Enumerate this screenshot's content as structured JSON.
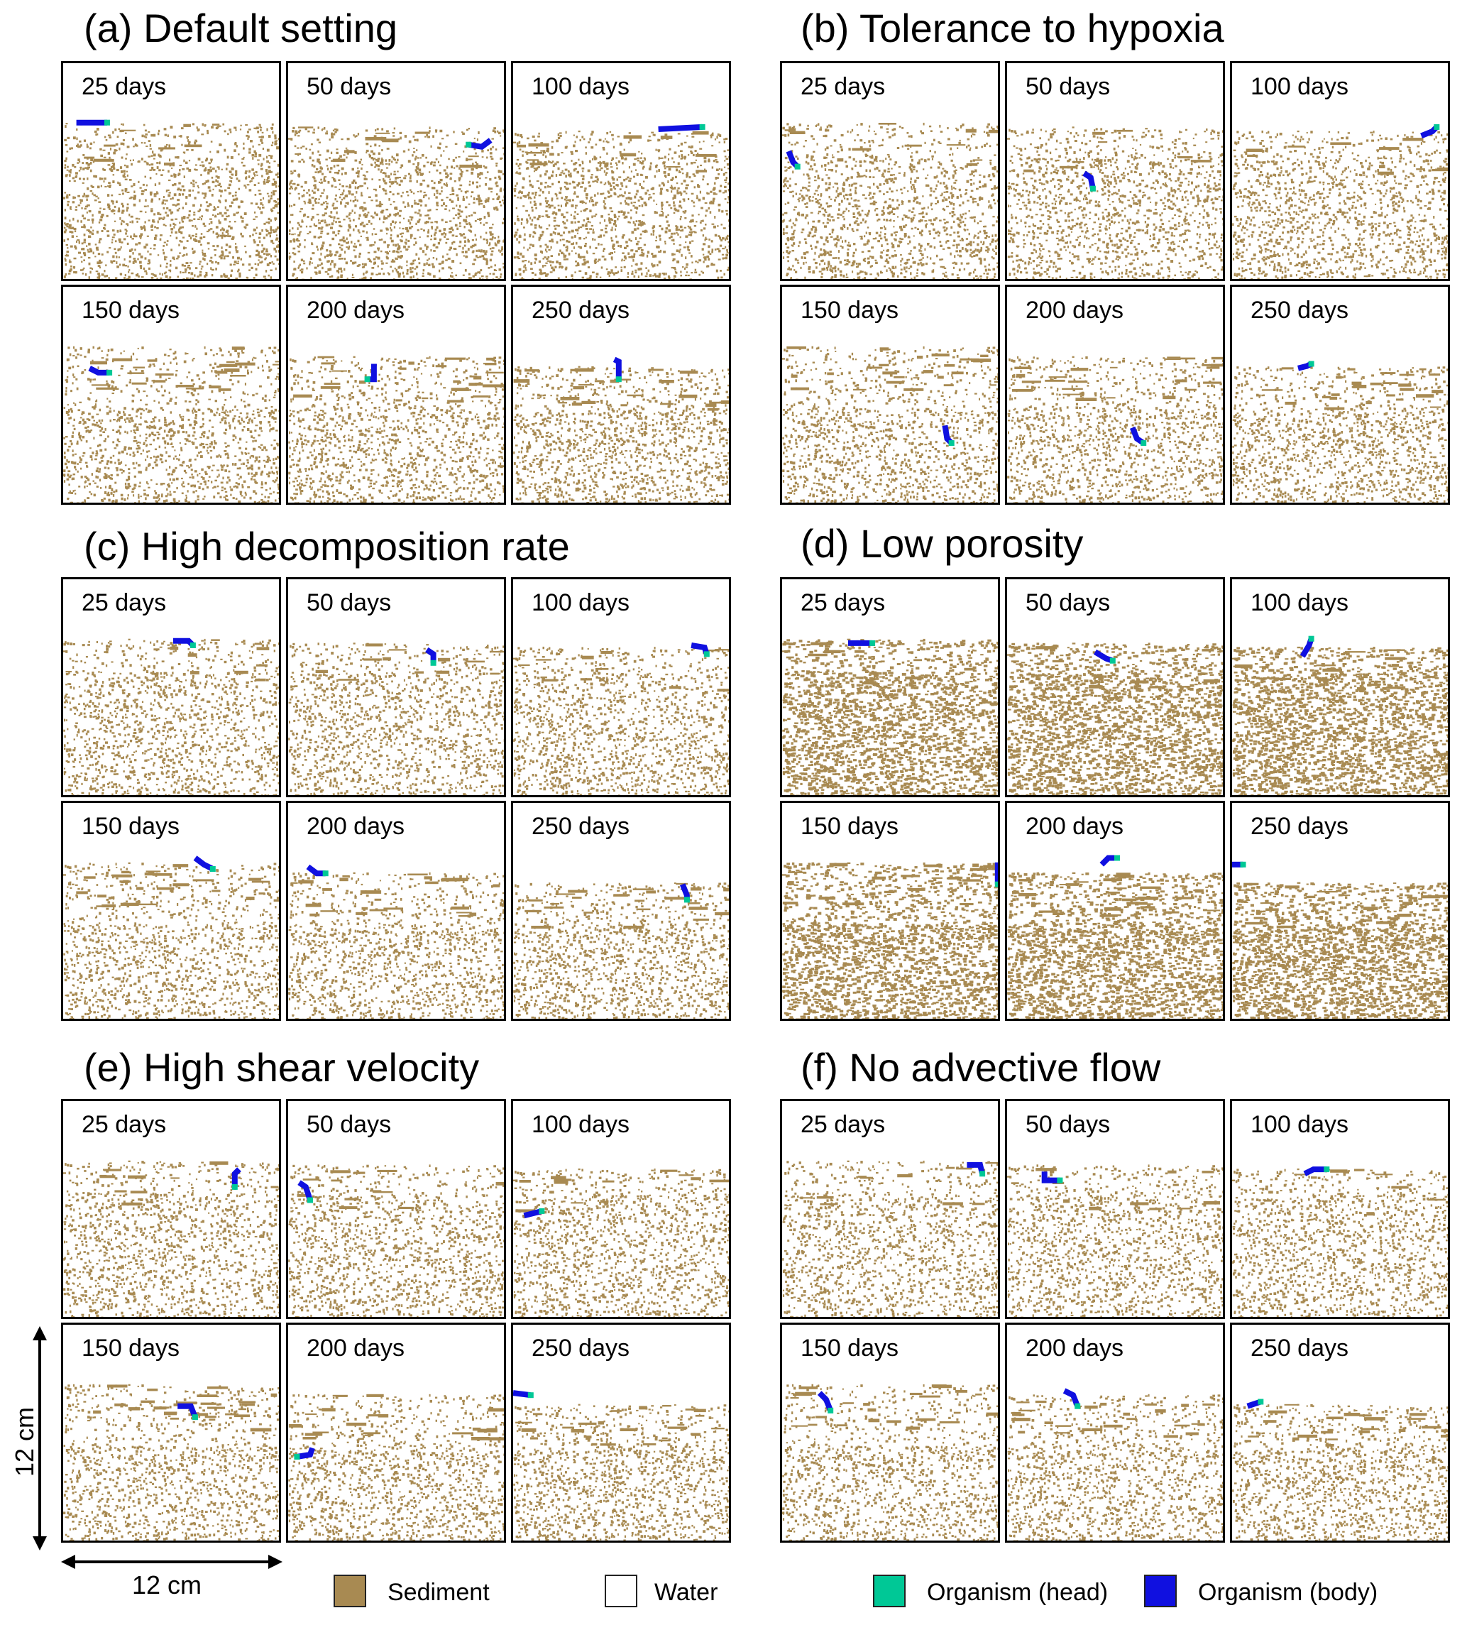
{
  "colors": {
    "sediment": "#a88a52",
    "water": "#ffffff",
    "organism_head": "#00c896",
    "organism_body": "#1010e0"
  },
  "groups": [
    {
      "id": "a",
      "title": "(a) Default setting",
      "density": "normal",
      "panels": [
        {
          "label": "25 days",
          "organism": {
            "points": [
              [
                0.06,
                0.27
              ],
              [
                0.2,
                0.27
              ]
            ]
          }
        },
        {
          "label": "50 days",
          "organism": {
            "points": [
              [
                0.92,
                0.35
              ],
              [
                0.88,
                0.38
              ],
              [
                0.82,
                0.37
              ]
            ]
          }
        },
        {
          "label": "100 days",
          "organism": {
            "points": [
              [
                0.66,
                0.3
              ],
              [
                0.86,
                0.29
              ]
            ]
          }
        },
        {
          "label": "150 days",
          "organism": {
            "points": [
              [
                0.12,
                0.37
              ],
              [
                0.16,
                0.39
              ],
              [
                0.21,
                0.39
              ]
            ]
          }
        },
        {
          "label": "200 days",
          "organism": {
            "points": [
              [
                0.39,
                0.35
              ],
              [
                0.39,
                0.42
              ],
              [
                0.36,
                0.42
              ]
            ]
          }
        },
        {
          "label": "250 days",
          "organism": {
            "points": [
              [
                0.46,
                0.33
              ],
              [
                0.48,
                0.34
              ],
              [
                0.48,
                0.42
              ]
            ]
          }
        }
      ]
    },
    {
      "id": "b",
      "title": "(b) Tolerance to hypoxia",
      "density": "normal",
      "panels": [
        {
          "label": "25 days",
          "organism": {
            "points": [
              [
                0.03,
                0.4
              ],
              [
                0.05,
                0.45
              ],
              [
                0.07,
                0.47
              ]
            ]
          }
        },
        {
          "label": "50 days",
          "organism": {
            "points": [
              [
                0.35,
                0.5
              ],
              [
                0.38,
                0.52
              ],
              [
                0.39,
                0.57
              ]
            ]
          }
        },
        {
          "label": "100 days",
          "organism": {
            "points": [
              [
                0.86,
                0.33
              ],
              [
                0.91,
                0.31
              ],
              [
                0.93,
                0.29
              ]
            ]
          }
        },
        {
          "label": "150 days",
          "organism": {
            "points": [
              [
                0.74,
                0.63
              ],
              [
                0.75,
                0.69
              ],
              [
                0.77,
                0.71
              ]
            ]
          }
        },
        {
          "label": "200 days",
          "organism": {
            "points": [
              [
                0.57,
                0.64
              ],
              [
                0.59,
                0.69
              ],
              [
                0.62,
                0.71
              ]
            ]
          }
        },
        {
          "label": "250 days",
          "organism": {
            "points": [
              [
                0.3,
                0.37
              ],
              [
                0.34,
                0.36
              ],
              [
                0.36,
                0.35
              ]
            ]
          }
        }
      ]
    },
    {
      "id": "c",
      "title": "(c) High decomposition rate",
      "density": "normal",
      "panels": [
        {
          "label": "25 days",
          "organism": {
            "points": [
              [
                0.5,
                0.28
              ],
              [
                0.57,
                0.28
              ],
              [
                0.59,
                0.3
              ]
            ]
          }
        },
        {
          "label": "50 days",
          "organism": {
            "points": [
              [
                0.63,
                0.32
              ],
              [
                0.66,
                0.34
              ],
              [
                0.66,
                0.38
              ]
            ]
          }
        },
        {
          "label": "100 days",
          "organism": {
            "points": [
              [
                0.81,
                0.3
              ],
              [
                0.87,
                0.31
              ],
              [
                0.88,
                0.34
              ]
            ]
          }
        },
        {
          "label": "150 days",
          "organism": {
            "points": [
              [
                0.6,
                0.25
              ],
              [
                0.64,
                0.28
              ],
              [
                0.68,
                0.3
              ]
            ]
          }
        },
        {
          "label": "200 days",
          "organism": {
            "points": [
              [
                0.09,
                0.29
              ],
              [
                0.13,
                0.32
              ],
              [
                0.17,
                0.32
              ]
            ]
          }
        },
        {
          "label": "250 days",
          "organism": {
            "points": [
              [
                0.77,
                0.37
              ],
              [
                0.79,
                0.42
              ],
              [
                0.79,
                0.44
              ]
            ]
          }
        }
      ]
    },
    {
      "id": "d",
      "title": "(d) Low porosity",
      "density": "high",
      "panels": [
        {
          "label": "25 days",
          "organism": {
            "points": [
              [
                0.3,
                0.29
              ],
              [
                0.41,
                0.29
              ]
            ]
          }
        },
        {
          "label": "50 days",
          "organism": {
            "points": [
              [
                0.4,
                0.33
              ],
              [
                0.45,
                0.36
              ],
              [
                0.48,
                0.37
              ]
            ]
          }
        },
        {
          "label": "100 days",
          "organism": {
            "points": [
              [
                0.32,
                0.35
              ],
              [
                0.35,
                0.3
              ],
              [
                0.36,
                0.27
              ]
            ]
          }
        },
        {
          "label": "150 days",
          "organism": {
            "points": [
              [
                0.98,
                0.27
              ],
              [
                0.98,
                0.37
              ]
            ]
          }
        },
        {
          "label": "200 days",
          "organism": {
            "points": [
              [
                0.43,
                0.28
              ],
              [
                0.46,
                0.25
              ],
              [
                0.5,
                0.25
              ]
            ]
          }
        },
        {
          "label": "250 days",
          "organism": {
            "points": [
              [
                0.0,
                0.28
              ],
              [
                0.05,
                0.28
              ]
            ]
          }
        }
      ]
    },
    {
      "id": "e",
      "title": "(e) High shear velocity",
      "density": "normal",
      "panels": [
        {
          "label": "25 days",
          "organism": {
            "points": [
              [
                0.8,
                0.31
              ],
              [
                0.78,
                0.33
              ],
              [
                0.78,
                0.39
              ]
            ]
          }
        },
        {
          "label": "50 days",
          "organism": {
            "points": [
              [
                0.05,
                0.37
              ],
              [
                0.08,
                0.39
              ],
              [
                0.1,
                0.45
              ]
            ]
          }
        },
        {
          "label": "100 days",
          "organism": {
            "points": [
              [
                0.05,
                0.52
              ],
              [
                0.09,
                0.51
              ],
              [
                0.13,
                0.5
              ]
            ]
          }
        },
        {
          "label": "150 days",
          "organism": {
            "points": [
              [
                0.52,
                0.37
              ],
              [
                0.58,
                0.37
              ],
              [
                0.6,
                0.42
              ]
            ]
          }
        },
        {
          "label": "200 days",
          "organism": {
            "points": [
              [
                0.11,
                0.56
              ],
              [
                0.1,
                0.59
              ],
              [
                0.04,
                0.6
              ]
            ]
          }
        },
        {
          "label": "250 days",
          "organism": {
            "points": [
              [
                0.0,
                0.31
              ],
              [
                0.08,
                0.32
              ]
            ]
          }
        }
      ]
    },
    {
      "id": "f",
      "title": "(f) No advective flow",
      "density": "normal",
      "panels": [
        {
          "label": "25 days",
          "organism": {
            "points": [
              [
                0.84,
                0.29
              ],
              [
                0.9,
                0.29
              ],
              [
                0.91,
                0.33
              ]
            ]
          }
        },
        {
          "label": "50 days",
          "organism": {
            "points": [
              [
                0.17,
                0.32
              ],
              [
                0.17,
                0.36
              ],
              [
                0.24,
                0.36
              ]
            ]
          }
        },
        {
          "label": "100 days",
          "organism": {
            "points": [
              [
                0.33,
                0.33
              ],
              [
                0.37,
                0.31
              ],
              [
                0.43,
                0.31
              ]
            ]
          }
        },
        {
          "label": "150 days",
          "organism": {
            "points": [
              [
                0.17,
                0.31
              ],
              [
                0.2,
                0.34
              ],
              [
                0.22,
                0.39
              ]
            ]
          }
        },
        {
          "label": "200 days",
          "organism": {
            "points": [
              [
                0.26,
                0.3
              ],
              [
                0.3,
                0.32
              ],
              [
                0.32,
                0.37
              ]
            ]
          }
        },
        {
          "label": "250 days",
          "organism": {
            "points": [
              [
                0.07,
                0.37
              ],
              [
                0.1,
                0.36
              ],
              [
                0.13,
                0.35
              ]
            ]
          }
        }
      ]
    }
  ],
  "scale": {
    "vertical": "12 cm",
    "horizontal": "12 cm"
  },
  "legend": {
    "sediment": "Sediment",
    "water": "Water",
    "head": "Organism (head)",
    "body": "Organism (body)"
  }
}
